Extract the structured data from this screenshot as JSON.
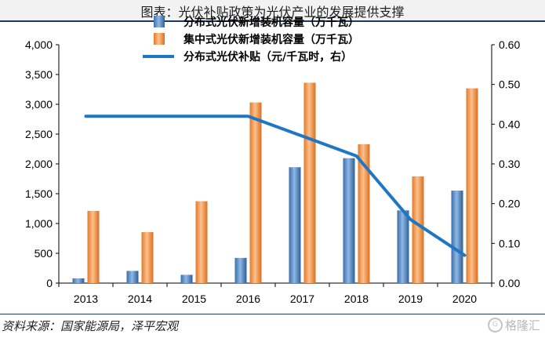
{
  "title": "图表：光伏补贴政策为光伏产业的发展提供支撑",
  "source": "资料来源：国家能源局，泽平宏观",
  "watermark": "格隆汇",
  "colors": {
    "distributed": "#5b8fc9",
    "centralized": "#f0924a",
    "subsidy": "#1f77c4"
  },
  "chart_data": {
    "type": "bar",
    "categories": [
      "2013",
      "2014",
      "2015",
      "2016",
      "2017",
      "2018",
      "2019",
      "2020"
    ],
    "series": [
      {
        "name": "分布式光伏新增装机容量（万千瓦）",
        "type": "bar",
        "axis": "left",
        "values": [
          80,
          205,
          139,
          423,
          1944,
          2096,
          1220,
          1552
        ]
      },
      {
        "name": "集中式光伏新增装机容量（万千瓦）",
        "type": "bar",
        "axis": "left",
        "values": [
          1212,
          855,
          1374,
          3031,
          3362,
          2330,
          1791,
          3268
        ]
      },
      {
        "name": "分布式光伏补贴（元/千瓦时，右）",
        "type": "line",
        "axis": "right",
        "values": [
          0.42,
          0.42,
          0.42,
          0.42,
          0.37,
          0.32,
          0.16,
          0.07
        ]
      }
    ],
    "yleft": {
      "min": 0,
      "max": 4000,
      "ticks": [
        "0",
        "500",
        "1,000",
        "1,500",
        "2,000",
        "2,500",
        "3,000",
        "3,500",
        "4,000"
      ]
    },
    "yright": {
      "min": 0,
      "max": 0.6,
      "ticks": [
        "0.00",
        "0.10",
        "0.20",
        "0.30",
        "0.40",
        "0.50",
        "0.60"
      ]
    },
    "legend_position": "top-center",
    "grid": false
  }
}
